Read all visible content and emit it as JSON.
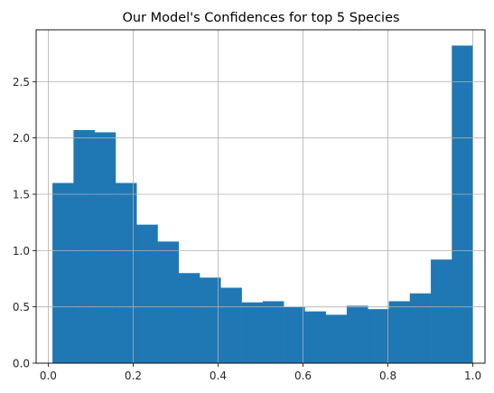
{
  "chart_data": {
    "type": "bar",
    "subtype": "histogram",
    "title": "Our Model's Confidences for top 5 Species",
    "xlabel": "",
    "ylabel": "",
    "xlim": [
      -0.0285,
      1.0285
    ],
    "ylim": [
      0,
      2.96
    ],
    "x_ticks": [
      "0.0",
      "0.2",
      "0.4",
      "0.6",
      "0.8",
      "1.0"
    ],
    "x_tick_values": [
      0.0,
      0.2,
      0.4,
      0.6,
      0.8,
      1.0
    ],
    "y_ticks": [
      "0.0",
      "0.5",
      "1.0",
      "1.5",
      "2.0",
      "2.5"
    ],
    "y_tick_values": [
      0.0,
      0.5,
      1.0,
      1.5,
      2.0,
      2.5
    ],
    "grid": true,
    "bar_color": "#1f77b4",
    "bins": [
      {
        "start": 0.01,
        "end": 0.0595,
        "value": 1.6
      },
      {
        "start": 0.0595,
        "end": 0.109,
        "value": 2.07
      },
      {
        "start": 0.109,
        "end": 0.1585,
        "value": 2.05
      },
      {
        "start": 0.1585,
        "end": 0.208,
        "value": 1.6
      },
      {
        "start": 0.208,
        "end": 0.2575,
        "value": 1.23
      },
      {
        "start": 0.2575,
        "end": 0.307,
        "value": 1.08
      },
      {
        "start": 0.307,
        "end": 0.3565,
        "value": 0.8
      },
      {
        "start": 0.3565,
        "end": 0.406,
        "value": 0.76
      },
      {
        "start": 0.406,
        "end": 0.4555,
        "value": 0.67
      },
      {
        "start": 0.4555,
        "end": 0.505,
        "value": 0.54
      },
      {
        "start": 0.505,
        "end": 0.5545,
        "value": 0.55
      },
      {
        "start": 0.5545,
        "end": 0.604,
        "value": 0.5
      },
      {
        "start": 0.604,
        "end": 0.6535,
        "value": 0.46
      },
      {
        "start": 0.6535,
        "end": 0.703,
        "value": 0.43
      },
      {
        "start": 0.703,
        "end": 0.7525,
        "value": 0.51
      },
      {
        "start": 0.7525,
        "end": 0.802,
        "value": 0.48
      },
      {
        "start": 0.802,
        "end": 0.8515,
        "value": 0.55
      },
      {
        "start": 0.8515,
        "end": 0.901,
        "value": 0.62
      },
      {
        "start": 0.901,
        "end": 0.9505,
        "value": 0.92
      },
      {
        "start": 0.9505,
        "end": 1.0,
        "value": 2.82
      }
    ]
  }
}
